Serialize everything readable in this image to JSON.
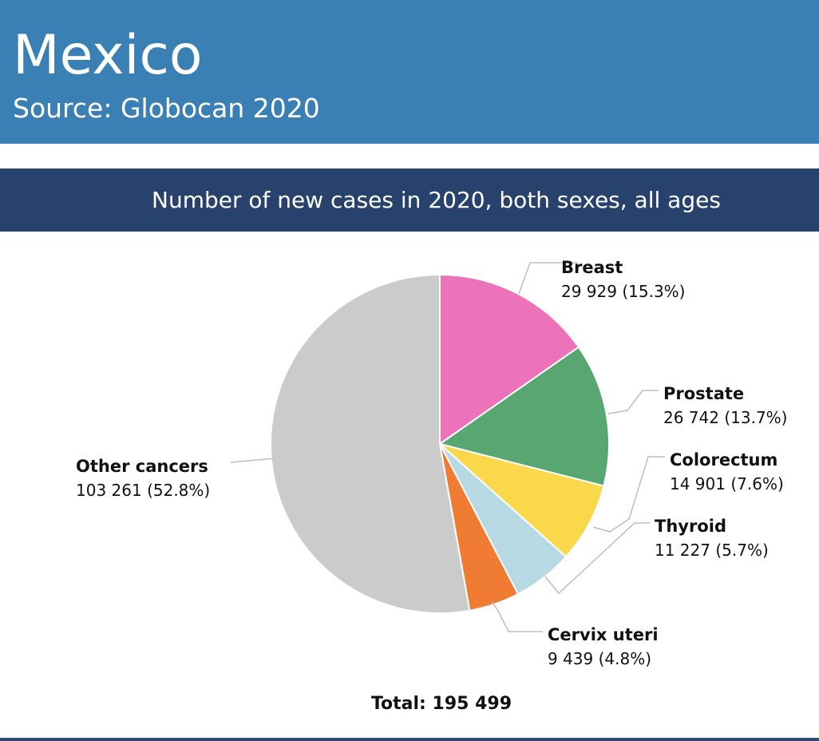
{
  "header": {
    "title": "Mexico",
    "source": "Source: Globocan 2020",
    "background": "#3a80b5"
  },
  "chart_data": {
    "type": "pie",
    "title": "Number of new cases in 2020, both sexes, all ages",
    "total_label": "Total: 195 499",
    "slices": [
      {
        "name": "Breast",
        "value": 29929,
        "label": "29 929 (15.3%)",
        "color": "#ec73b9"
      },
      {
        "name": "Prostate",
        "value": 26742,
        "label": "26 742 (13.7%)",
        "color": "#58a672"
      },
      {
        "name": "Colorectum",
        "value": 14901,
        "label": "14 901 (7.6%)",
        "color": "#f9d84b"
      },
      {
        "name": "Thyroid",
        "value": 11227,
        "label": "11 227 (5.7%)",
        "color": "#b7d9e4"
      },
      {
        "name": "Cervix uteri",
        "value": 9439,
        "label": "9 439 (4.8%)",
        "color": "#ef7c32"
      },
      {
        "name": "Other cancers",
        "value": 103261,
        "label": "103 261 (52.8%)",
        "color": "#cbcbcb"
      }
    ]
  }
}
